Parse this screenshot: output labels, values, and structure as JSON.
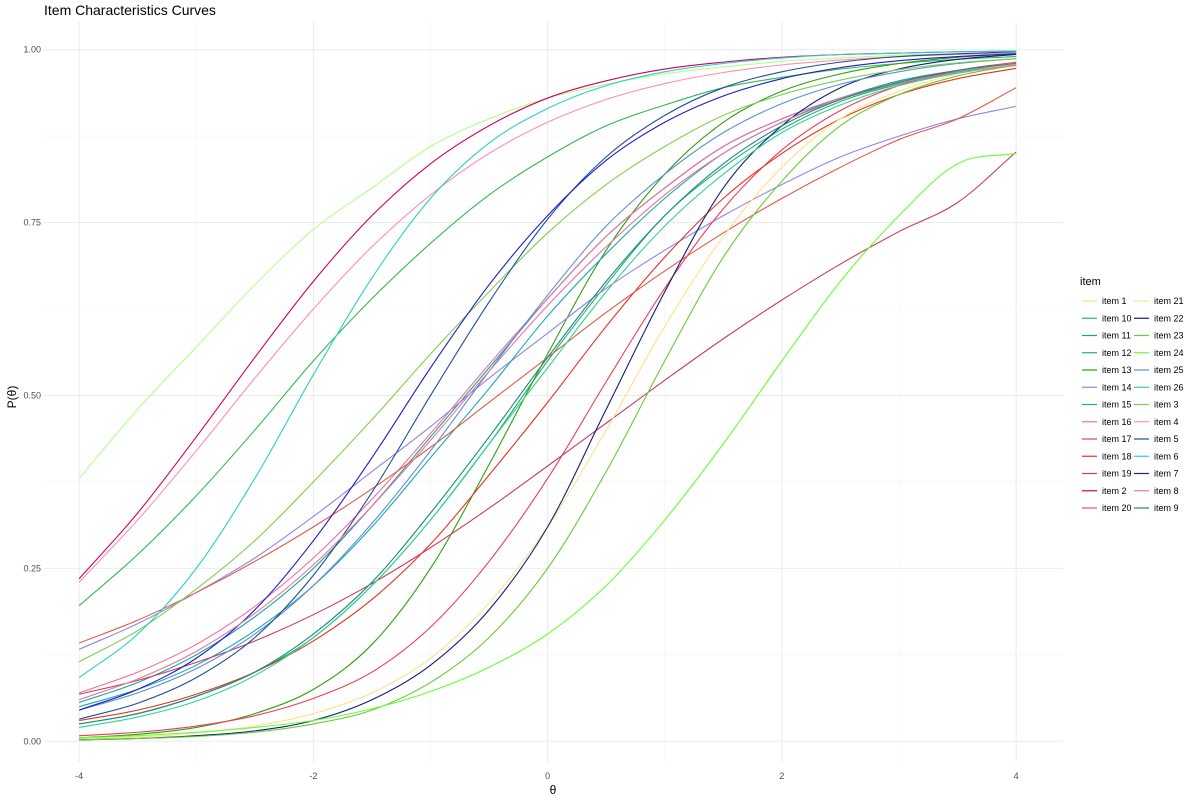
{
  "chart_data": {
    "type": "line",
    "title": "Item Characteristics Curves",
    "xlabel": "θ",
    "ylabel": "P(θ)",
    "xlim": [
      -4.3,
      4.4
    ],
    "ylim": [
      -0.03,
      1.04
    ],
    "x_ticks": [
      -4,
      -2,
      0,
      2,
      4
    ],
    "y_ticks": [
      0.0,
      0.25,
      0.5,
      0.75,
      1.0
    ],
    "y_tick_labels": [
      "0.00",
      "0.25",
      "0.50",
      "0.75",
      "1.00"
    ],
    "grid": true,
    "legend_title": "item",
    "legend_position": "right",
    "x": [
      -4,
      -3.5,
      -3,
      -2.5,
      -2,
      -1.5,
      -1,
      -0.5,
      0,
      0.5,
      1,
      1.5,
      2,
      2.5,
      3,
      3.5,
      4
    ],
    "series": [
      {
        "name": "item 1",
        "color": "#b3ff8c",
        "values": [
          0.38,
          0.48,
          0.57,
          0.66,
          0.74,
          0.8,
          0.86,
          0.9,
          0.93,
          0.95,
          0.965,
          0.975,
          0.983,
          0.988,
          0.992,
          0.994,
          0.996
        ]
      },
      {
        "name": "item 10",
        "color": "#33b84d",
        "values": [
          0.196,
          0.27,
          0.355,
          0.45,
          0.55,
          0.64,
          0.72,
          0.79,
          0.845,
          0.89,
          0.92,
          0.945,
          0.96,
          0.972,
          0.98,
          0.986,
          0.99
        ]
      },
      {
        "name": "item 11",
        "color": "#12a39a",
        "values": [
          0.056,
          0.085,
          0.125,
          0.18,
          0.25,
          0.34,
          0.44,
          0.54,
          0.64,
          0.73,
          0.8,
          0.86,
          0.9,
          0.93,
          0.955,
          0.97,
          0.98
        ]
      },
      {
        "name": "item 12",
        "color": "#20b070",
        "values": [
          0.025,
          0.04,
          0.065,
          0.1,
          0.15,
          0.225,
          0.32,
          0.43,
          0.55,
          0.66,
          0.76,
          0.83,
          0.885,
          0.925,
          0.95,
          0.967,
          0.978
        ]
      },
      {
        "name": "item 13",
        "color": "#2ca00e",
        "values": [
          0.005,
          0.01,
          0.02,
          0.04,
          0.075,
          0.14,
          0.25,
          0.4,
          0.56,
          0.71,
          0.82,
          0.895,
          0.94,
          0.965,
          0.98,
          0.989,
          0.994
        ]
      },
      {
        "name": "item 14",
        "color": "#8f85e8",
        "values": [
          0.133,
          0.17,
          0.215,
          0.265,
          0.325,
          0.39,
          0.455,
          0.525,
          0.59,
          0.655,
          0.71,
          0.76,
          0.805,
          0.845,
          0.875,
          0.9,
          0.918
        ]
      },
      {
        "name": "item 15",
        "color": "#1aa8b3",
        "values": [
          0.05,
          0.075,
          0.11,
          0.16,
          0.225,
          0.31,
          0.41,
          0.51,
          0.615,
          0.705,
          0.785,
          0.85,
          0.895,
          0.93,
          0.952,
          0.968,
          0.978
        ]
      },
      {
        "name": "item 16",
        "color": "#f070a0",
        "values": [
          0.07,
          0.1,
          0.14,
          0.195,
          0.265,
          0.35,
          0.445,
          0.545,
          0.64,
          0.73,
          0.8,
          0.86,
          0.9,
          0.93,
          0.952,
          0.967,
          0.977
        ]
      },
      {
        "name": "item 17",
        "color": "#f03c5a",
        "values": [
          0.008,
          0.013,
          0.022,
          0.037,
          0.062,
          0.1,
          0.165,
          0.26,
          0.38,
          0.52,
          0.655,
          0.77,
          0.855,
          0.912,
          0.948,
          0.97,
          0.982
        ]
      },
      {
        "name": "item 18",
        "color": "#e8321e",
        "values": [
          0.03,
          0.045,
          0.068,
          0.1,
          0.145,
          0.205,
          0.285,
          0.385,
          0.49,
          0.6,
          0.7,
          0.785,
          0.85,
          0.9,
          0.935,
          0.958,
          0.973
        ]
      },
      {
        "name": "item 19",
        "color": "#c83c5f",
        "values": [
          0.068,
          0.088,
          0.114,
          0.145,
          0.183,
          0.228,
          0.28,
          0.337,
          0.398,
          0.46,
          0.522,
          0.582,
          0.638,
          0.69,
          0.737,
          0.779,
          0.852
        ]
      },
      {
        "name": "item 2",
        "color": "#d1005a",
        "values": [
          0.235,
          0.33,
          0.44,
          0.555,
          0.665,
          0.76,
          0.835,
          0.89,
          0.93,
          0.955,
          0.972,
          0.982,
          0.989,
          0.993,
          0.995,
          0.997,
          0.998
        ]
      },
      {
        "name": "item 20",
        "color": "#e05a46",
        "values": [
          0.142,
          0.175,
          0.215,
          0.26,
          0.31,
          0.365,
          0.425,
          0.49,
          0.555,
          0.62,
          0.68,
          0.735,
          0.785,
          0.83,
          0.87,
          0.9,
          0.945
        ]
      },
      {
        "name": "item 21",
        "color": "#ffe08a",
        "values": [
          0.003,
          0.006,
          0.012,
          0.022,
          0.04,
          0.07,
          0.12,
          0.2,
          0.31,
          0.45,
          0.6,
          0.73,
          0.83,
          0.9,
          0.94,
          0.965,
          0.98
        ]
      },
      {
        "name": "item 22",
        "color": "#101e7a",
        "values": [
          0.002,
          0.004,
          0.008,
          0.015,
          0.03,
          0.06,
          0.11,
          0.19,
          0.31,
          0.48,
          0.65,
          0.8,
          0.89,
          0.945,
          0.972,
          0.986,
          0.993
        ]
      },
      {
        "name": "item 23",
        "color": "#66cc33",
        "values": [
          0.002,
          0.004,
          0.007,
          0.013,
          0.025,
          0.045,
          0.085,
          0.15,
          0.25,
          0.39,
          0.55,
          0.7,
          0.81,
          0.89,
          0.935,
          0.962,
          0.978
        ]
      },
      {
        "name": "item 24",
        "color": "#66ff33",
        "values": [
          0.005,
          0.008,
          0.013,
          0.02,
          0.03,
          0.047,
          0.072,
          0.107,
          0.155,
          0.225,
          0.32,
          0.43,
          0.55,
          0.665,
          0.76,
          0.835,
          0.85
        ]
      },
      {
        "name": "item 25",
        "color": "#5b8fd6",
        "values": [
          0.045,
          0.07,
          0.105,
          0.155,
          0.225,
          0.315,
          0.42,
          0.535,
          0.645,
          0.745,
          0.82,
          0.88,
          0.922,
          0.95,
          0.968,
          0.98,
          0.987
        ]
      },
      {
        "name": "item 26",
        "color": "#2fd492",
        "values": [
          0.02,
          0.035,
          0.058,
          0.095,
          0.15,
          0.225,
          0.32,
          0.43,
          0.54,
          0.65,
          0.745,
          0.82,
          0.88,
          0.92,
          0.948,
          0.966,
          0.978
        ]
      },
      {
        "name": "item 3",
        "color": "#7fd04f",
        "values": [
          0.115,
          0.16,
          0.22,
          0.29,
          0.375,
          0.465,
          0.56,
          0.65,
          0.735,
          0.805,
          0.86,
          0.905,
          0.935,
          0.956,
          0.971,
          0.981,
          0.987
        ]
      },
      {
        "name": "item 4",
        "color": "#ff8fb1",
        "values": [
          0.23,
          0.32,
          0.42,
          0.525,
          0.625,
          0.715,
          0.79,
          0.85,
          0.895,
          0.928,
          0.951,
          0.967,
          0.978,
          0.985,
          0.99,
          0.993,
          0.995
        ]
      },
      {
        "name": "item 5",
        "color": "#1f4e99",
        "values": [
          0.032,
          0.055,
          0.092,
          0.15,
          0.24,
          0.36,
          0.5,
          0.635,
          0.755,
          0.845,
          0.905,
          0.945,
          0.968,
          0.982,
          0.99,
          0.994,
          0.997
        ]
      },
      {
        "name": "item 6",
        "color": "#2ad1c1",
        "values": [
          0.092,
          0.155,
          0.25,
          0.38,
          0.53,
          0.67,
          0.785,
          0.865,
          0.915,
          0.948,
          0.968,
          0.98,
          0.988,
          0.993,
          0.995,
          0.997,
          0.998
        ]
      },
      {
        "name": "item 7",
        "color": "#1a1acc",
        "values": [
          0.045,
          0.075,
          0.12,
          0.19,
          0.29,
          0.41,
          0.54,
          0.66,
          0.76,
          0.84,
          0.895,
          0.933,
          0.958,
          0.974,
          0.984,
          0.99,
          0.994
        ]
      },
      {
        "name": "item 8",
        "color": "#e8779a",
        "values": [
          0.06,
          0.09,
          0.13,
          0.185,
          0.255,
          0.34,
          0.435,
          0.535,
          0.63,
          0.715,
          0.79,
          0.85,
          0.895,
          0.928,
          0.951,
          0.967,
          0.978
        ]
      },
      {
        "name": "item 9",
        "color": "#1a8a7e",
        "values": [
          0.025,
          0.04,
          0.065,
          0.1,
          0.155,
          0.23,
          0.33,
          0.44,
          0.555,
          0.665,
          0.76,
          0.835,
          0.89,
          0.928,
          0.953,
          0.97,
          0.98
        ]
      }
    ]
  }
}
